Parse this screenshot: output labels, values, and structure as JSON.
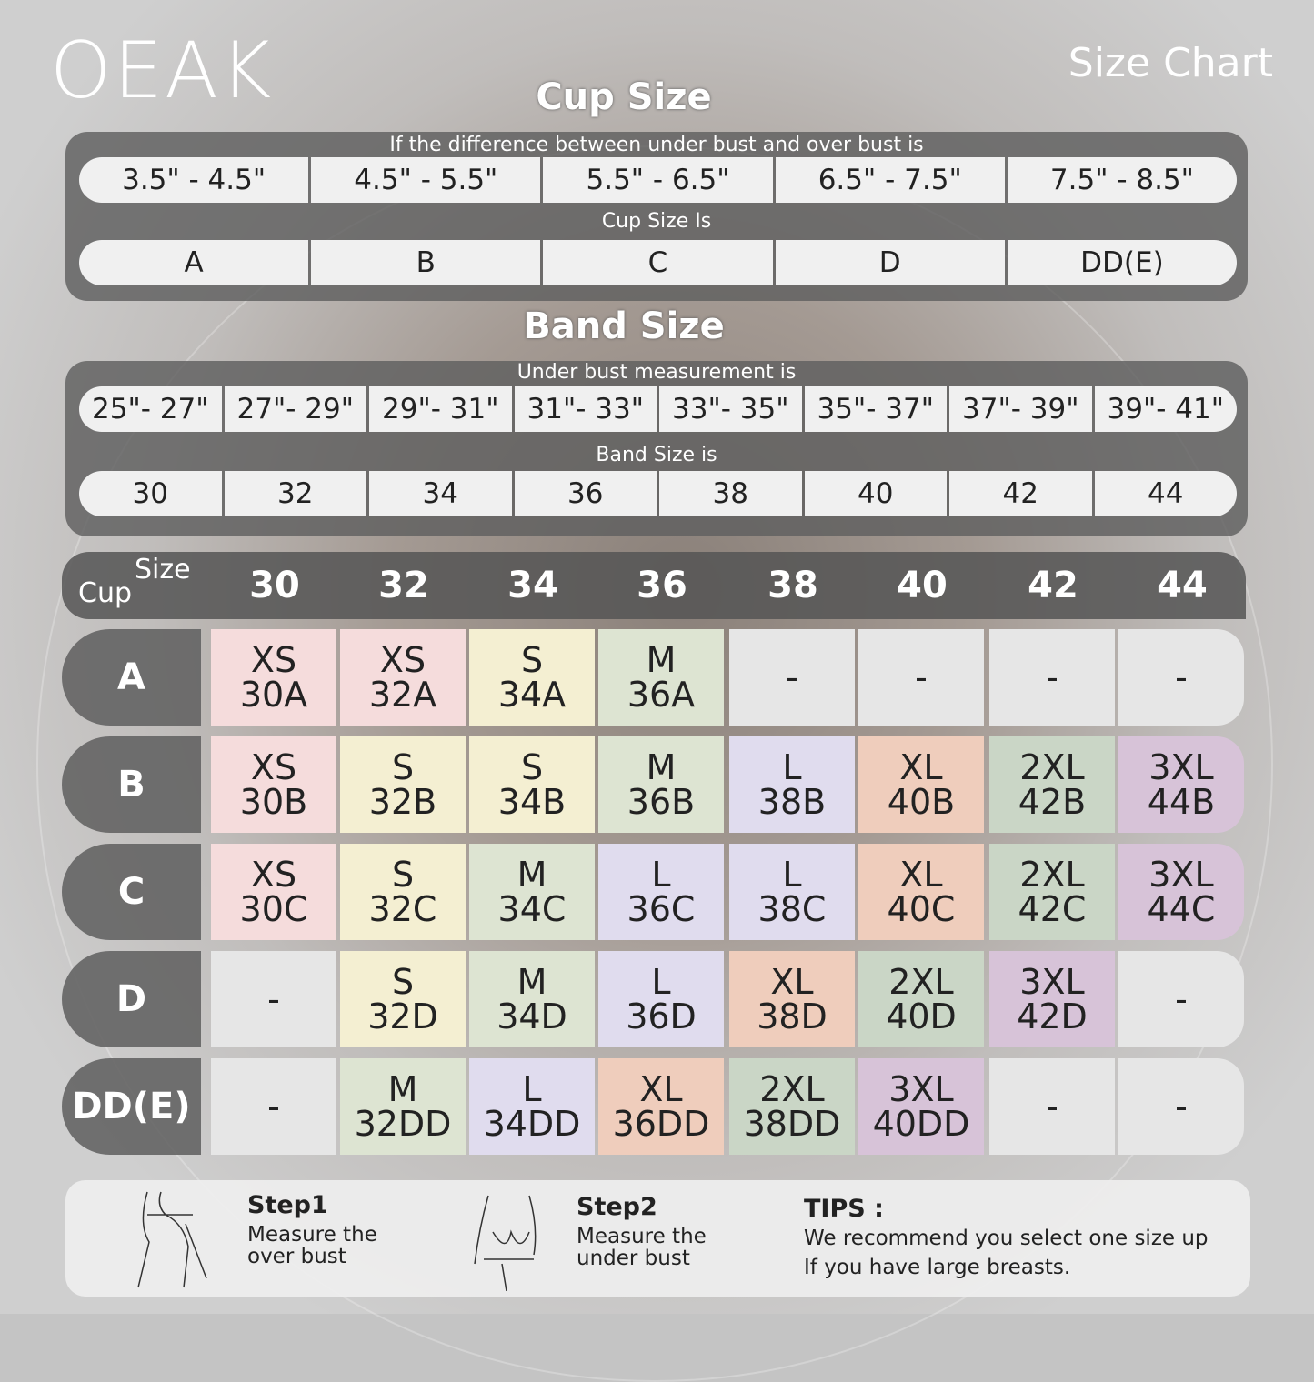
{
  "brand": "OEAK",
  "title": "Size Chart",
  "cup": {
    "heading": "Cup Size",
    "diff_label": "If the  difference between under bust and over bust is",
    "ranges": [
      "3.5\" -  4.5\"",
      "4.5\" -  5.5\"",
      "5.5\" -  6.5\"",
      "6.5\" -  7.5\"",
      "7.5\" -  8.5\""
    ],
    "is_label": "Cup Size Is",
    "sizes": [
      "A",
      "B",
      "C",
      "D",
      "DD(E)"
    ]
  },
  "band": {
    "heading": "Band Size",
    "under_label": "Under bust measurement is",
    "ranges": [
      "25\"- 27\"",
      "27\"- 29\"",
      "29\"- 31\"",
      "31\"- 33\"",
      "33\"- 35\"",
      "35\"- 37\"",
      "37\"- 39\"",
      "39\"- 41\""
    ],
    "is_label": "Band Size is",
    "sizes": [
      "30",
      "32",
      "34",
      "36",
      "38",
      "40",
      "42",
      "44"
    ]
  },
  "grid": {
    "size_label": "Size",
    "cup_label": "Cup",
    "columns": [
      "30",
      "32",
      "34",
      "36",
      "38",
      "40",
      "42",
      "44"
    ],
    "rows": [
      {
        "cup": "A",
        "cells": [
          [
            "XS",
            "30A"
          ],
          [
            "XS",
            "32A"
          ],
          [
            "S",
            "34A"
          ],
          [
            "M",
            "36A"
          ],
          [
            "-"
          ],
          [
            "-"
          ],
          [
            "-"
          ],
          [
            "-"
          ]
        ]
      },
      {
        "cup": "B",
        "cells": [
          [
            "XS",
            "30B"
          ],
          [
            "S",
            "32B"
          ],
          [
            "S",
            "34B"
          ],
          [
            "M",
            "36B"
          ],
          [
            "L",
            "38B"
          ],
          [
            "XL",
            "40B"
          ],
          [
            "2XL",
            "42B"
          ],
          [
            "3XL",
            "44B"
          ]
        ]
      },
      {
        "cup": "C",
        "cells": [
          [
            "XS",
            "30C"
          ],
          [
            "S",
            "32C"
          ],
          [
            "M",
            "34C"
          ],
          [
            "L",
            "36C"
          ],
          [
            "L",
            "38C"
          ],
          [
            "XL",
            "40C"
          ],
          [
            "2XL",
            "42C"
          ],
          [
            "3XL",
            "44C"
          ]
        ]
      },
      {
        "cup": "D",
        "cells": [
          [
            "-"
          ],
          [
            "S",
            "32D"
          ],
          [
            "M",
            "34D"
          ],
          [
            "L",
            "36D"
          ],
          [
            "XL",
            "38D"
          ],
          [
            "2XL",
            "40D"
          ],
          [
            "3XL",
            "42D"
          ],
          [
            "-"
          ]
        ]
      },
      {
        "cup": "DD(E)",
        "cells": [
          [
            "-"
          ],
          [
            "M",
            "32DD"
          ],
          [
            "L",
            "34DD"
          ],
          [
            "XL",
            "36DD"
          ],
          [
            "2XL",
            "38DD"
          ],
          [
            "3XL",
            "40DD"
          ],
          [
            "-"
          ],
          [
            "-"
          ]
        ]
      }
    ],
    "colors": {
      "XS": "#f5dcdc",
      "S": "#f4efd2",
      "M": "#dde4d2",
      "L": "#e0dcee",
      "XL": "#efcdbc",
      "2XL": "#cad6c6",
      "3XL": "#d7c3d8",
      "-": "#e6e6e6"
    }
  },
  "footer": {
    "step1_title": "Step1",
    "step1_text": "Measure the over bust",
    "step2_title": "Step2",
    "step2_text": "Measure the under bust",
    "tips_title": "TIPS :",
    "tips_line1": "We recommend you select one size up",
    "tips_line2": "If you have large breasts."
  }
}
